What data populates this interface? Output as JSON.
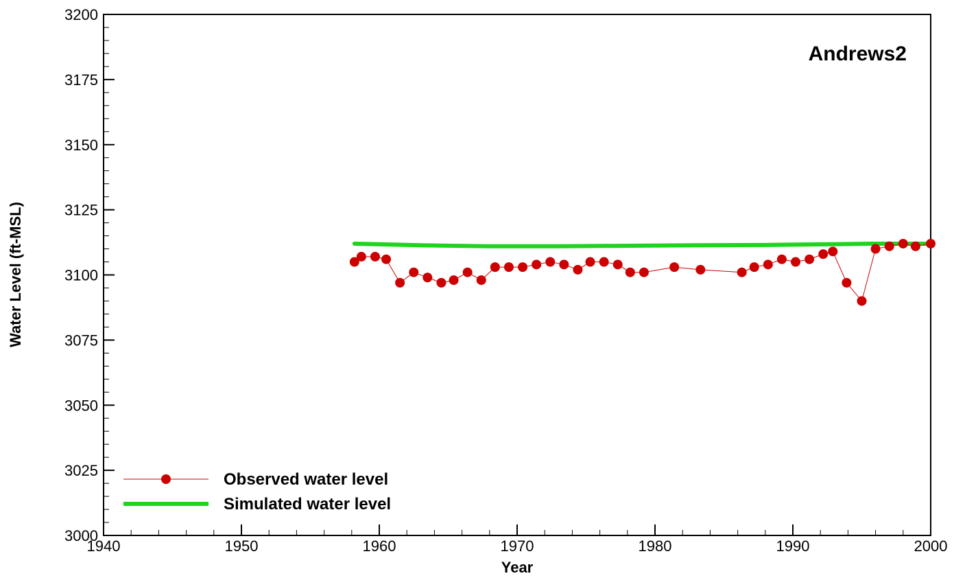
{
  "chart_data": {
    "type": "line",
    "title": "Andrews2",
    "xlabel": "Year",
    "ylabel": "Water Level (ft-MSL)",
    "xlim": [
      1940,
      2000
    ],
    "ylim": [
      3000,
      3200
    ],
    "x_ticks": [
      1940,
      1950,
      1960,
      1970,
      1980,
      1990,
      2000
    ],
    "y_ticks": [
      3000,
      3025,
      3050,
      3075,
      3100,
      3125,
      3150,
      3175,
      3200
    ],
    "grid": false,
    "legend_position": "bottom-left",
    "series": [
      {
        "name": "Observed water level",
        "color": "#cc0000",
        "marker": "circle",
        "x": [
          1958.2,
          1958.7,
          1959.7,
          1960.5,
          1961.5,
          1962.5,
          1963.5,
          1964.5,
          1965.4,
          1966.4,
          1967.4,
          1968.4,
          1969.4,
          1970.4,
          1971.4,
          1972.4,
          1973.4,
          1974.4,
          1975.3,
          1976.3,
          1977.3,
          1978.2,
          1979.2,
          1981.4,
          1983.3,
          1986.3,
          1987.2,
          1988.2,
          1989.2,
          1990.2,
          1991.2,
          1992.2,
          1992.9,
          1993.9,
          1995.0,
          1996.0,
          1997.0,
          1998.0,
          1998.9,
          2000.0
        ],
        "y": [
          3105,
          3107,
          3107,
          3106,
          3097,
          3101,
          3099,
          3097,
          3098,
          3101,
          3098,
          3103,
          3103,
          3103,
          3104,
          3105,
          3104,
          3102,
          3105,
          3105,
          3104,
          3101,
          3101,
          3103,
          3102,
          3101,
          3103,
          3104,
          3106,
          3105,
          3106,
          3108,
          3109,
          3097,
          3090,
          3110,
          3111,
          3112,
          3111,
          3112
        ]
      },
      {
        "name": "Simulated water level",
        "color": "#1ed41e",
        "marker": "none",
        "x": [
          1958.2,
          1963,
          1968,
          1973,
          1978,
          1983,
          1988,
          1993,
          1996,
          2000
        ],
        "y": [
          3112,
          3111.4,
          3111,
          3111,
          3111.2,
          3111.4,
          3111.5,
          3111.8,
          3112,
          3112
        ]
      }
    ]
  }
}
